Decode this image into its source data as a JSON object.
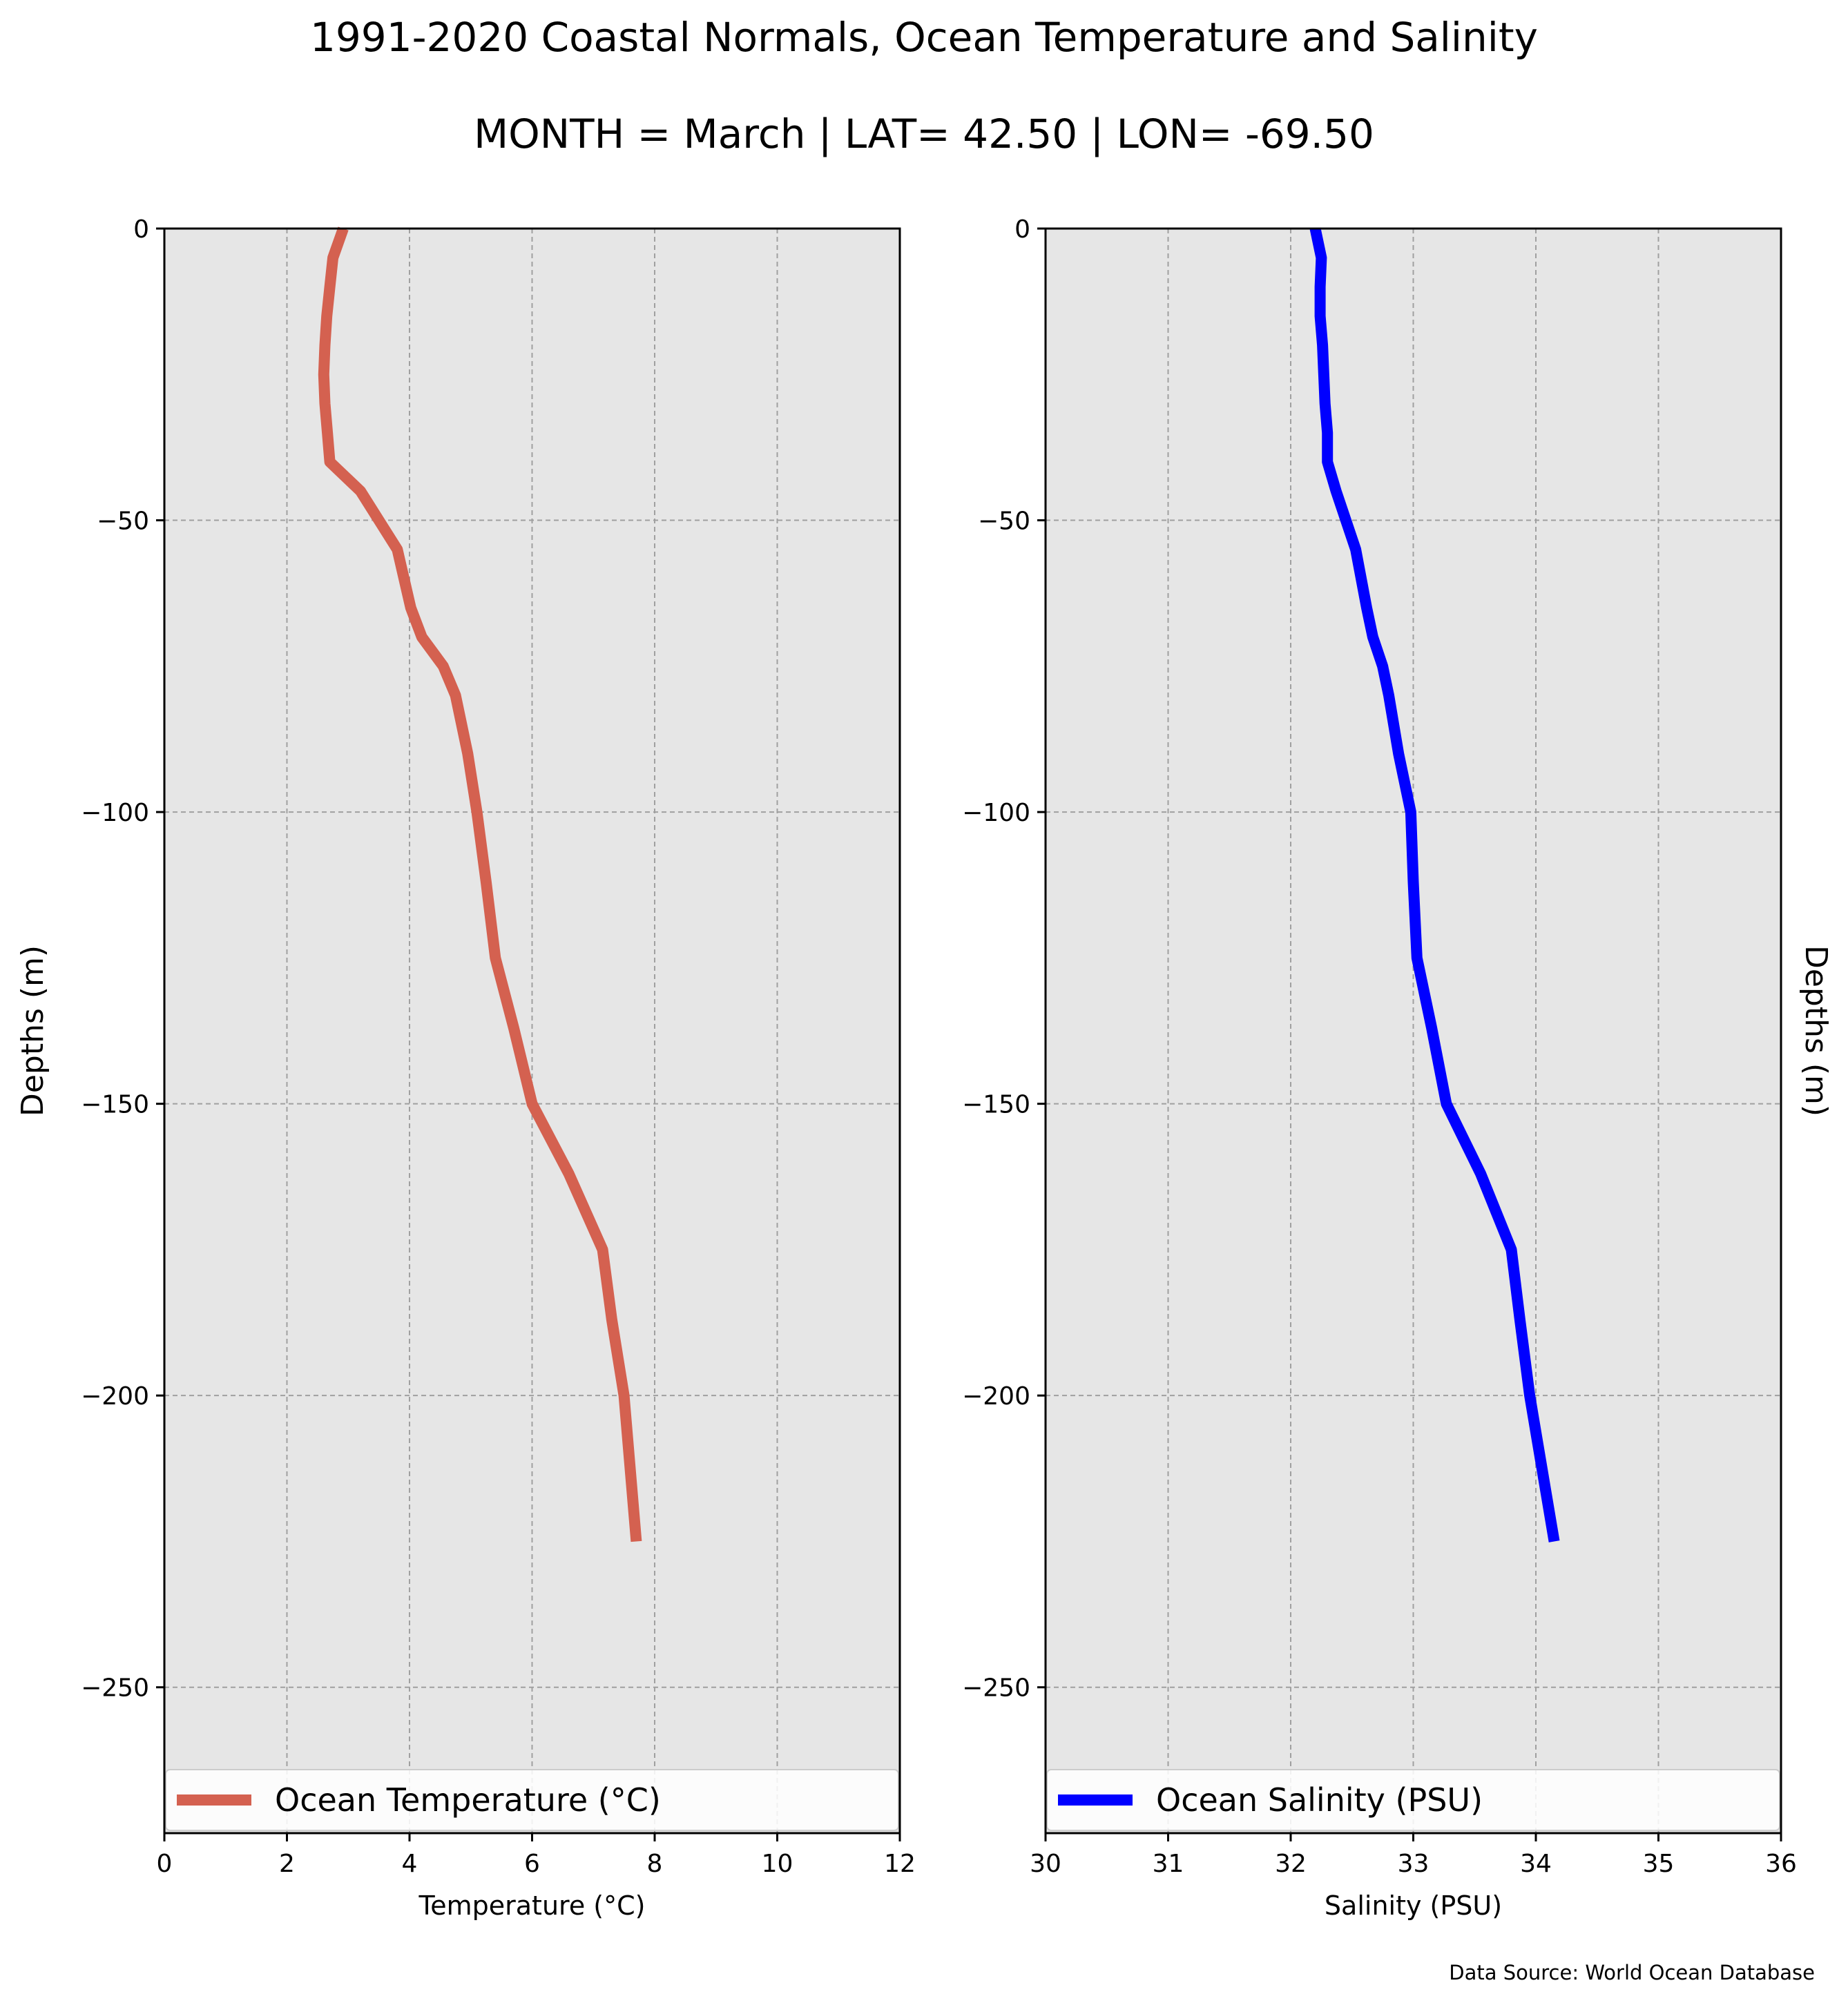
{
  "chart_data": {
    "title": "1991-2020 Coastal Normals, Ocean Temperature and Salinity",
    "subtitle": "MONTH = March | LAT= 42.50 | LON= -69.50",
    "source": "Data Source: World Ocean Database",
    "panels": [
      {
        "type": "line",
        "xlabel": "Temperature (°C)",
        "ylabel": "Depths (m)",
        "ylabel_side": "left",
        "xlim": [
          0,
          12
        ],
        "ylim": [
          -275,
          0
        ],
        "xticks": [
          0,
          2,
          4,
          6,
          8,
          10,
          12
        ],
        "xtick_labels": [
          "0",
          "2",
          "4",
          "6",
          "8",
          "10",
          "12"
        ],
        "yticks": [
          0,
          -50,
          -100,
          -150,
          -200,
          -250
        ],
        "ytick_labels": [
          "0",
          "−50",
          "−100",
          "−150",
          "−200",
          "−250"
        ],
        "grid": true,
        "legend_position": "bottom",
        "series": [
          {
            "name": "Ocean Temperature (°C)",
            "color": "#d46150",
            "x": [
              2.92,
              2.75,
              2.7,
              2.65,
              2.62,
              2.6,
              2.62,
              2.66,
              2.7,
              3.2,
              3.8,
              4.02,
              4.2,
              4.55,
              4.75,
              4.95,
              5.1,
              5.25,
              5.4,
              5.7,
              6.0,
              6.6,
              7.15,
              7.3,
              7.5,
              7.7
            ],
            "y": [
              0,
              -5,
              -10,
              -15,
              -20,
              -25,
              -30,
              -35,
              -40,
              -45,
              -55,
              -65,
              -70,
              -75,
              -80,
              -90,
              -100,
              -112,
              -125,
              -137,
              -150,
              -162,
              -175,
              -187,
              -200,
              -225
            ]
          }
        ]
      },
      {
        "type": "line",
        "xlabel": "Salinity (PSU)",
        "ylabel": "Depths (m)",
        "ylabel_side": "right",
        "xlim": [
          30,
          36
        ],
        "ylim": [
          -275,
          0
        ],
        "xticks": [
          30,
          31,
          32,
          33,
          34,
          35,
          36
        ],
        "xtick_labels": [
          "30",
          "31",
          "32",
          "33",
          "34",
          "35",
          "36"
        ],
        "yticks": [
          0,
          -50,
          -100,
          -150,
          -200,
          -250
        ],
        "ytick_labels": [
          "0",
          "−50",
          "−100",
          "−150",
          "−200",
          "−250"
        ],
        "grid": true,
        "legend_position": "bottom",
        "series": [
          {
            "name": "Ocean Salinity (PSU)",
            "color": "#0000ff",
            "x": [
              32.2,
              32.25,
              32.24,
              32.24,
              32.26,
              32.27,
              32.28,
              32.3,
              32.3,
              32.37,
              32.53,
              32.62,
              32.67,
              32.75,
              32.8,
              32.88,
              32.98,
              33.0,
              33.03,
              33.15,
              33.27,
              33.55,
              33.8,
              33.87,
              33.95,
              34.15
            ],
            "y": [
              0,
              -5,
              -10,
              -15,
              -20,
              -25,
              -30,
              -35,
              -40,
              -45,
              -55,
              -65,
              -70,
              -75,
              -80,
              -90,
              -100,
              -112,
              -125,
              -137,
              -150,
              -162,
              -175,
              -187,
              -200,
              -225
            ]
          }
        ]
      }
    ]
  }
}
